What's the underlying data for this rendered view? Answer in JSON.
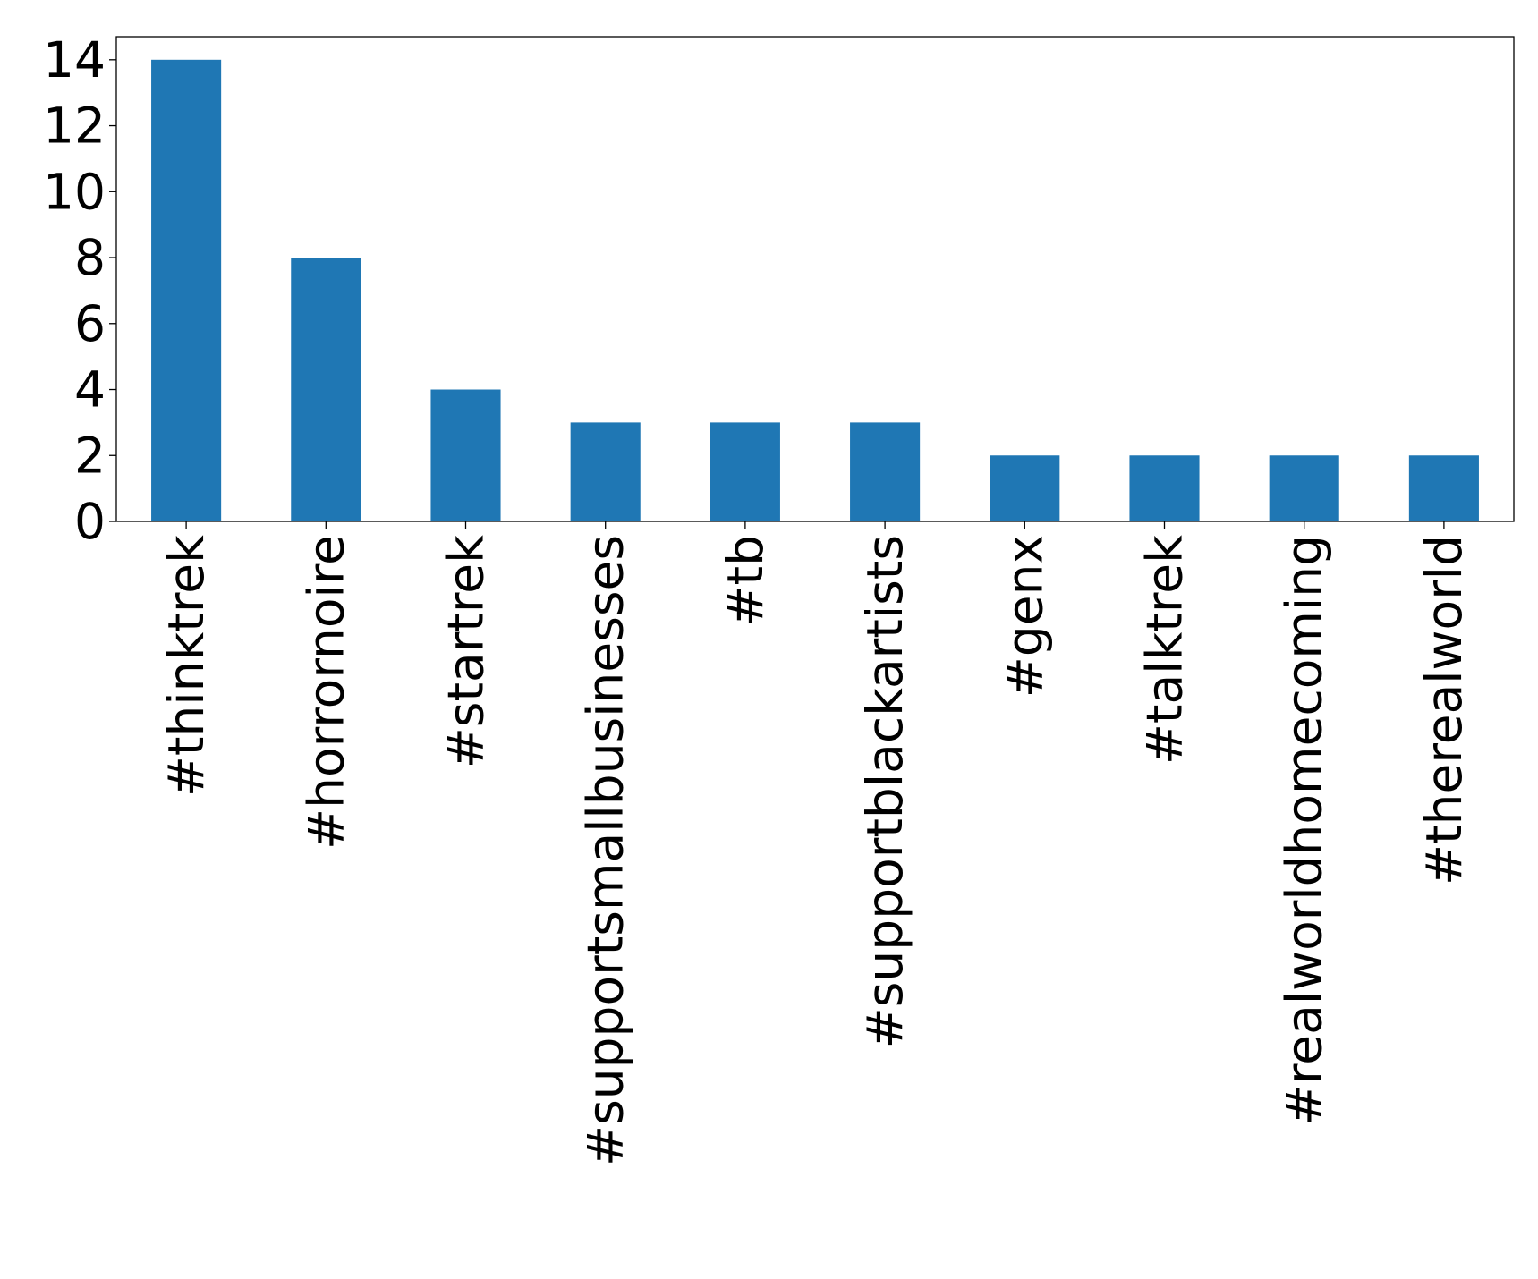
{
  "chart_data": {
    "type": "bar",
    "categories": [
      "#thinktrek",
      "#horrornoire",
      "#startrek",
      "#supportsmallbusinesses",
      "#tb",
      "#supportblackartists",
      "#genx",
      "#talktrek",
      "#realworldhomecoming",
      "#therealworld"
    ],
    "values": [
      14,
      8,
      4,
      3,
      3,
      3,
      2,
      2,
      2,
      2
    ],
    "title": "",
    "xlabel": "",
    "ylabel": "",
    "ylim": [
      0,
      14.7
    ],
    "yticks": [
      0,
      2,
      4,
      6,
      8,
      10,
      12,
      14
    ],
    "grid": false,
    "legend": "none",
    "colors": {
      "bar": "#1f77b4",
      "axis": "#000000",
      "background": "#ffffff"
    }
  }
}
